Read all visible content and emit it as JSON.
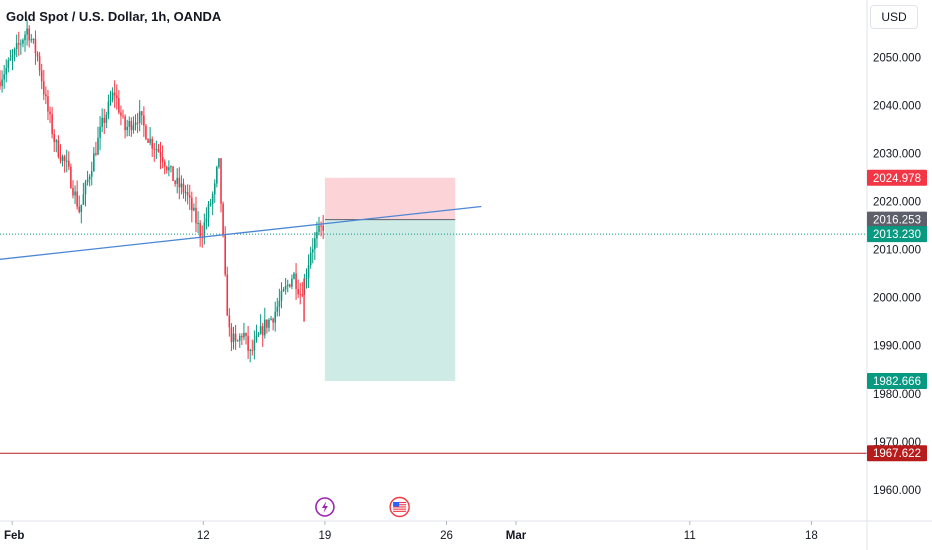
{
  "header": {
    "title": "Gold Spot / U.S. Dollar, 1h, OANDA",
    "currency": "USD"
  },
  "colors": {
    "up": "#089981",
    "down": "#f23645",
    "trendline": "#4c87d6",
    "stop_zone": "#f23645",
    "target_zone": "#089981",
    "support_line": "#b71c1c",
    "current_price_line": "#089981"
  },
  "icons": {
    "event_1": "lightning-icon",
    "event_2": "us-flag-icon"
  },
  "chart_data": {
    "type": "candlestick",
    "title": "Gold Spot / U.S. Dollar, 1h, OANDA",
    "yaxis": {
      "range": [
        1953.5,
        2062.0
      ],
      "ticks": [
        "1960.000",
        "1970.000",
        "1980.000",
        "1990.000",
        "2000.000",
        "2010.000",
        "2020.000",
        "2030.000",
        "2040.000",
        "2050.000"
      ],
      "side": "right"
    },
    "xaxis": {
      "ticks": [
        {
          "label": "Feb",
          "day": 1,
          "bold": true
        },
        {
          "label": "12",
          "day": 12
        },
        {
          "label": "19",
          "day": 19
        },
        {
          "label": "26",
          "day": 26
        },
        {
          "label": "Mar",
          "day": 30,
          "bold": true
        },
        {
          "label": "11",
          "day": 40
        },
        {
          "label": "18",
          "day": 47
        }
      ],
      "range_days": [
        0.3,
        50.2
      ]
    },
    "price_path": [
      [
        0.3,
        2045
      ],
      [
        1.0,
        2049
      ],
      [
        2.0,
        2056
      ],
      [
        2.6,
        2050
      ],
      [
        3.1,
        2040
      ],
      [
        3.6,
        2032
      ],
      [
        4.3,
        2027
      ],
      [
        5.0,
        2018
      ],
      [
        5.5,
        2025
      ],
      [
        6.3,
        2036
      ],
      [
        7.0,
        2043
      ],
      [
        7.6,
        2035
      ],
      [
        8.4,
        2038
      ],
      [
        9.0,
        2033
      ],
      [
        9.7,
        2030
      ],
      [
        10.5,
        2024
      ],
      [
        11.1,
        2022
      ],
      [
        11.6,
        2017
      ],
      [
        12.0,
        2013
      ],
      [
        12.4,
        2018
      ],
      [
        12.8,
        2023
      ],
      [
        13.0,
        2029
      ],
      [
        13.2,
        2016
      ],
      [
        13.4,
        2002
      ],
      [
        13.6,
        1993
      ],
      [
        14.0,
        1990
      ],
      [
        14.4,
        1993
      ],
      [
        14.8,
        1988
      ],
      [
        15.2,
        1991
      ],
      [
        15.6,
        1994
      ],
      [
        16.1,
        1996
      ],
      [
        16.5,
        1999
      ],
      [
        16.9,
        2002
      ],
      [
        17.3,
        2005
      ],
      [
        17.7,
        2001
      ],
      [
        18.0,
        2004
      ],
      [
        18.3,
        2010
      ],
      [
        18.7,
        2013
      ],
      [
        19.0,
        2015
      ]
    ],
    "last_price": 2013.23,
    "trendline": {
      "from": [
        0.3,
        2008.0
      ],
      "to": [
        28.0,
        2019.0
      ]
    },
    "position": {
      "type": "short",
      "start_day": 19.0,
      "end_day": 26.5,
      "entry": 2016.253,
      "stop": 2024.978,
      "target": 1982.666
    },
    "horizontal_line": 1967.622,
    "price_tags": [
      {
        "label": "2024.978",
        "value": 2024.978,
        "color": "#f23645"
      },
      {
        "label": "2016.253",
        "value": 2016.253,
        "color": "#5d606b"
      },
      {
        "label": "2013.230",
        "value": 2013.23,
        "color": "#089981"
      },
      {
        "label": "1982.666",
        "value": 1982.666,
        "color": "#089981"
      },
      {
        "label": "1967.622",
        "value": 1967.622,
        "color": "#b71c1c"
      }
    ],
    "events": [
      {
        "icon": "lightning-icon",
        "day": 19.0
      },
      {
        "icon": "us-flag-icon",
        "day": 23.3
      }
    ]
  }
}
